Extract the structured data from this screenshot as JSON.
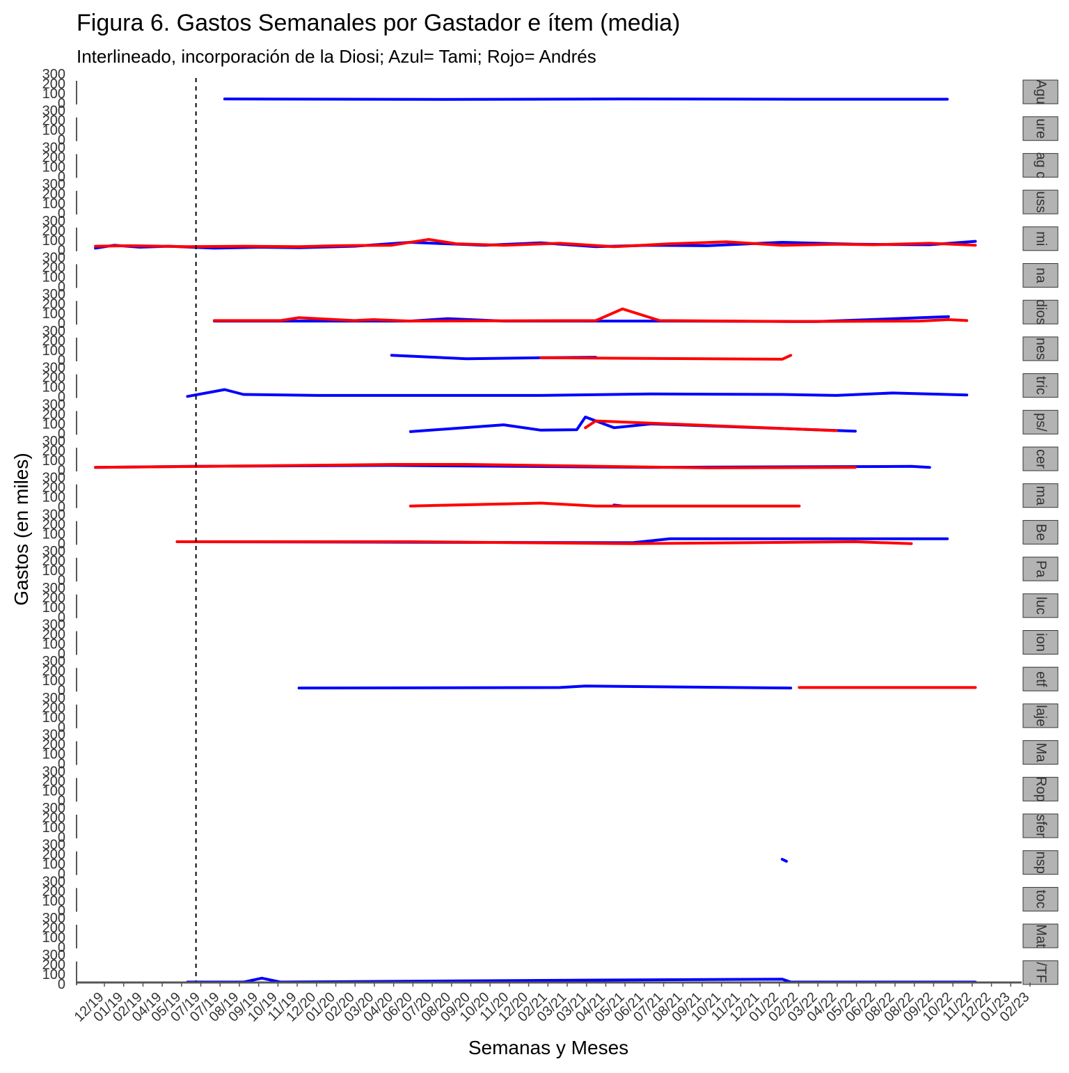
{
  "chart_data": {
    "type": "line",
    "title": "Figura 6. Gastos Semanales por Gastador e ítem (media)",
    "subtitle": "Interlineado, incorporación de la Diosi; Azul= Tami; Rojo= Andrés",
    "xlabel": "Semanas y Meses",
    "ylabel": "Gastos (en miles)",
    "y_ticks": [
      "0",
      "100",
      "200",
      "300"
    ],
    "ylim": [
      0,
      300
    ],
    "xlim": [
      "2018-12-01",
      "2023-03-01"
    ],
    "x_ticks": [
      "12/19",
      "01/19",
      "02/19",
      "04/19",
      "05/19",
      "07/19",
      "07/19",
      "08/19",
      "09/19",
      "10/19",
      "11/19",
      "12/20",
      "01/20",
      "02/20",
      "03/20",
      "04/20",
      "06/20",
      "07/20",
      "08/20",
      "09/20",
      "10/20",
      "11/20",
      "12/20",
      "02/21",
      "03/21",
      "03/21",
      "04/21",
      "05/21",
      "06/21",
      "07/21",
      "08/21",
      "09/21",
      "10/21",
      "11/21",
      "12/21",
      "01/22",
      "02/22",
      "03/22",
      "04/22",
      "05/22",
      "06/22",
      "08/22",
      "08/22",
      "09/22",
      "10/22",
      "11/22",
      "12/22",
      "01/23",
      "02/23"
    ],
    "reference_line": {
      "x": "2019-06-15",
      "style": "dashed"
    },
    "colors": {
      "Tami": "#0000ff",
      "Andrés": "#ff0000"
    },
    "grid": false,
    "legend": "none",
    "panels": [
      {
        "strip": "Agu",
        "series": [
          {
            "color": "#0000ff",
            "points": [
              [
                "2019-08-01",
                35
              ],
              [
                "2020-08-01",
                30
              ],
              [
                "2021-06-01",
                35
              ],
              [
                "2022-04-01",
                32
              ],
              [
                "2022-10-30",
                32
              ]
            ]
          }
        ]
      },
      {
        "strip": "ure",
        "series": []
      },
      {
        "strip": "ag c",
        "series": []
      },
      {
        "strip": "uss",
        "series": []
      },
      {
        "strip": "mi",
        "series": [
          {
            "color": "#0000ff",
            "points": [
              [
                "2019-01-01",
                10
              ],
              [
                "2019-02-01",
                40
              ],
              [
                "2019-03-15",
                20
              ],
              [
                "2019-05-01",
                30
              ],
              [
                "2019-07-15",
                10
              ],
              [
                "2019-10-01",
                20
              ],
              [
                "2019-12-01",
                15
              ],
              [
                "2020-03-01",
                30
              ],
              [
                "2020-06-01",
                70
              ],
              [
                "2020-08-01",
                55
              ],
              [
                "2020-10-01",
                40
              ],
              [
                "2021-01-01",
                65
              ],
              [
                "2021-04-01",
                25
              ],
              [
                "2021-07-01",
                40
              ],
              [
                "2021-10-01",
                35
              ],
              [
                "2022-02-01",
                70
              ],
              [
                "2022-06-01",
                50
              ],
              [
                "2022-10-01",
                45
              ],
              [
                "2022-12-15",
                80
              ]
            ]
          },
          {
            "color": "#ff0000",
            "points": [
              [
                "2019-01-01",
                30
              ],
              [
                "2019-03-01",
                35
              ],
              [
                "2019-06-01",
                25
              ],
              [
                "2019-09-01",
                30
              ],
              [
                "2019-12-01",
                25
              ],
              [
                "2020-02-01",
                35
              ],
              [
                "2020-05-01",
                40
              ],
              [
                "2020-07-01",
                100
              ],
              [
                "2020-08-15",
                55
              ],
              [
                "2020-11-01",
                40
              ],
              [
                "2021-02-01",
                60
              ],
              [
                "2021-05-01",
                25
              ],
              [
                "2021-08-01",
                55
              ],
              [
                "2021-11-01",
                75
              ],
              [
                "2022-02-01",
                40
              ],
              [
                "2022-05-01",
                50
              ],
              [
                "2022-07-01",
                45
              ],
              [
                "2022-10-01",
                60
              ],
              [
                "2022-12-15",
                40
              ]
            ]
          }
        ]
      },
      {
        "strip": "na",
        "series": []
      },
      {
        "strip": "dios",
        "series": [
          {
            "color": "#0000ff",
            "points": [
              [
                "2019-07-15",
                15
              ],
              [
                "2020-06-01",
                15
              ],
              [
                "2020-08-01",
                40
              ],
              [
                "2020-11-01",
                15
              ],
              [
                "2021-08-01",
                15
              ],
              [
                "2022-04-01",
                10
              ],
              [
                "2022-11-01",
                60
              ]
            ]
          },
          {
            "color": "#ff0000",
            "points": [
              [
                "2019-07-15",
                20
              ],
              [
                "2019-11-01",
                20
              ],
              [
                "2019-12-01",
                50
              ],
              [
                "2020-03-01",
                20
              ],
              [
                "2020-04-01",
                30
              ],
              [
                "2020-06-01",
                15
              ],
              [
                "2021-04-01",
                20
              ],
              [
                "2021-05-15",
                140
              ],
              [
                "2021-07-15",
                20
              ],
              [
                "2022-03-01",
                10
              ],
              [
                "2022-09-15",
                15
              ],
              [
                "2022-11-01",
                30
              ],
              [
                "2022-12-01",
                20
              ]
            ]
          }
        ]
      },
      {
        "strip": "nes",
        "series": [
          {
            "color": "#0000ff",
            "points": [
              [
                "2020-05-01",
                40
              ],
              [
                "2020-09-01",
                5
              ],
              [
                "2021-01-01",
                15
              ],
              [
                "2021-04-01",
                20
              ]
            ]
          },
          {
            "color": "#ff0000",
            "points": [
              [
                "2021-01-01",
                15
              ],
              [
                "2022-02-01",
                0
              ],
              [
                "2022-02-15",
                40
              ]
            ]
          }
        ]
      },
      {
        "strip": "tric",
        "series": [
          {
            "color": "#0000ff",
            "points": [
              [
                "2019-06-01",
                -5
              ],
              [
                "2019-08-01",
                65
              ],
              [
                "2019-09-01",
                15
              ],
              [
                "2020-01-01",
                5
              ],
              [
                "2021-01-01",
                5
              ],
              [
                "2021-07-01",
                20
              ],
              [
                "2022-02-01",
                15
              ],
              [
                "2022-05-01",
                5
              ],
              [
                "2022-08-01",
                30
              ],
              [
                "2022-12-01",
                10
              ]
            ]
          }
        ]
      },
      {
        "strip": "ps/",
        "series": [
          {
            "color": "#0000ff",
            "points": [
              [
                "2020-06-01",
                10
              ],
              [
                "2020-11-01",
                80
              ],
              [
                "2021-01-01",
                25
              ],
              [
                "2021-03-01",
                30
              ],
              [
                "2021-03-15",
                160
              ],
              [
                "2021-05-01",
                50
              ],
              [
                "2021-07-01",
                90
              ],
              [
                "2022-06-01",
                15
              ]
            ]
          },
          {
            "color": "#ff0000",
            "points": [
              [
                "2021-03-15",
                50
              ],
              [
                "2021-04-01",
                120
              ],
              [
                "2022-05-01",
                20
              ]
            ]
          }
        ]
      },
      {
        "strip": "cer",
        "series": [
          {
            "color": "#0000ff",
            "points": [
              [
                "2019-01-01",
                20
              ],
              [
                "2019-06-01",
                30
              ],
              [
                "2020-05-01",
                40
              ],
              [
                "2021-07-01",
                20
              ],
              [
                "2022-09-01",
                30
              ],
              [
                "2022-10-01",
                20
              ]
            ]
          },
          {
            "color": "#ff0000",
            "points": [
              [
                "2019-01-01",
                20
              ],
              [
                "2019-07-01",
                30
              ],
              [
                "2020-05-01",
                50
              ],
              [
                "2020-09-01",
                50
              ],
              [
                "2021-10-01",
                15
              ],
              [
                "2022-06-01",
                20
              ]
            ]
          }
        ]
      },
      {
        "strip": "ma",
        "series": [
          {
            "color": "#0000ff",
            "points": [
              [
                "2021-05-01",
                10
              ],
              [
                "2021-05-15",
                0
              ]
            ]
          },
          {
            "color": "#ff0000",
            "points": [
              [
                "2020-06-01",
                0
              ],
              [
                "2021-01-01",
                30
              ],
              [
                "2021-04-01",
                0
              ],
              [
                "2022-03-01",
                0
              ]
            ]
          }
        ]
      },
      {
        "strip": "Be",
        "series": [
          {
            "color": "#0000ff",
            "points": [
              [
                "2019-05-15",
                10
              ],
              [
                "2021-06-01",
                0
              ],
              [
                "2021-08-01",
                40
              ],
              [
                "2022-03-01",
                40
              ],
              [
                "2022-06-01",
                40
              ],
              [
                "2022-10-30",
                40
              ]
            ]
          },
          {
            "color": "#ff0000",
            "points": [
              [
                "2019-05-15",
                10
              ],
              [
                "2020-06-01",
                10
              ],
              [
                "2021-06-01",
                -10
              ],
              [
                "2022-06-01",
                10
              ],
              [
                "2022-09-01",
                -10
              ]
            ]
          }
        ]
      },
      {
        "strip": "Pa",
        "series": []
      },
      {
        "strip": "luc",
        "series": []
      },
      {
        "strip": "ion",
        "series": []
      },
      {
        "strip": "etf",
        "series": [
          {
            "color": "#0000ff",
            "points": [
              [
                "2019-12-01",
                15
              ],
              [
                "2021-02-01",
                20
              ],
              [
                "2021-03-15",
                35
              ],
              [
                "2022-02-15",
                15
              ]
            ]
          },
          {
            "color": "#ff0000",
            "points": [
              [
                "2022-03-01",
                20
              ],
              [
                "2022-12-15",
                20
              ]
            ]
          }
        ]
      },
      {
        "strip": "laje",
        "series": []
      },
      {
        "strip": "Ma",
        "series": []
      },
      {
        "strip": "Rop",
        "series": []
      },
      {
        "strip": "sfer",
        "series": []
      },
      {
        "strip": "nsp",
        "series": [
          {
            "color": "#0000ff",
            "points": [
              [
                "2022-02-01",
                140
              ],
              [
                "2022-02-08",
                120
              ]
            ]
          }
        ]
      },
      {
        "strip": "toc",
        "series": []
      },
      {
        "strip": "Mat",
        "series": []
      },
      {
        "strip": "/TF",
        "series": [
          {
            "color": "#0000ff",
            "points": [
              [
                "2019-06-01",
                10
              ],
              [
                "2019-09-01",
                10
              ],
              [
                "2019-10-01",
                50
              ],
              [
                "2019-11-01",
                10
              ],
              [
                "2021-03-15",
                30
              ],
              [
                "2022-02-01",
                40
              ],
              [
                "2022-02-15",
                10
              ],
              [
                "2022-12-15",
                10
              ]
            ]
          }
        ]
      }
    ]
  }
}
